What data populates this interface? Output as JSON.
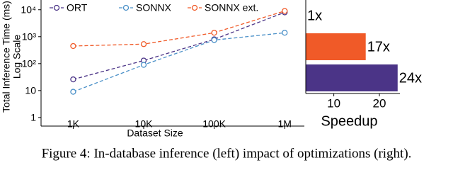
{
  "chart_data": [
    {
      "type": "line",
      "x_label": "Dataset Size",
      "y_label": [
        "Total Inference Time (ms)",
        "Log Scale"
      ],
      "x": [
        1000,
        10000,
        100000,
        1000000
      ],
      "xlim": [
        350,
        1900000
      ],
      "xscale": "log",
      "xticks": [
        {
          "value": 1000,
          "label": "1K"
        },
        {
          "value": 10000,
          "label": "10K"
        },
        {
          "value": 100000,
          "label": "100K"
        },
        {
          "value": 1000000,
          "label": "1M"
        }
      ],
      "ylim": [
        0.48,
        23000
      ],
      "yscale": "log",
      "yticks": [
        1,
        10,
        {
          "value": 100,
          "label": "10²"
        },
        {
          "value": 1000,
          "label": "10³"
        },
        {
          "value": 10000,
          "label": "10⁴"
        }
      ],
      "legend": "top",
      "series": [
        {
          "name": "ORT",
          "color": "#4b3487",
          "values": [
            26,
            130,
            800,
            8000
          ]
        },
        {
          "name": "SONNX",
          "color": "#4a90c8",
          "values": [
            9,
            90,
            750,
            1400
          ]
        },
        {
          "name": "SONNX ext.",
          "color": "#f05a28",
          "values": [
            450,
            530,
            1400,
            9000
          ]
        }
      ]
    },
    {
      "type": "hbar",
      "x_label": "Speedup",
      "categories": [
        null,
        null,
        null
      ],
      "values": [
        1,
        17,
        24
      ],
      "value_labels": [
        "1x",
        "17x",
        "24x"
      ],
      "colors": [
        "#ffffff",
        "#f05a28",
        "#4b3487"
      ],
      "xlim": [
        3.85,
        24.5
      ],
      "xticks": [
        10,
        20
      ]
    }
  ],
  "caption": "Figure 4: In-database inference (left) impact of optimizations (right)."
}
